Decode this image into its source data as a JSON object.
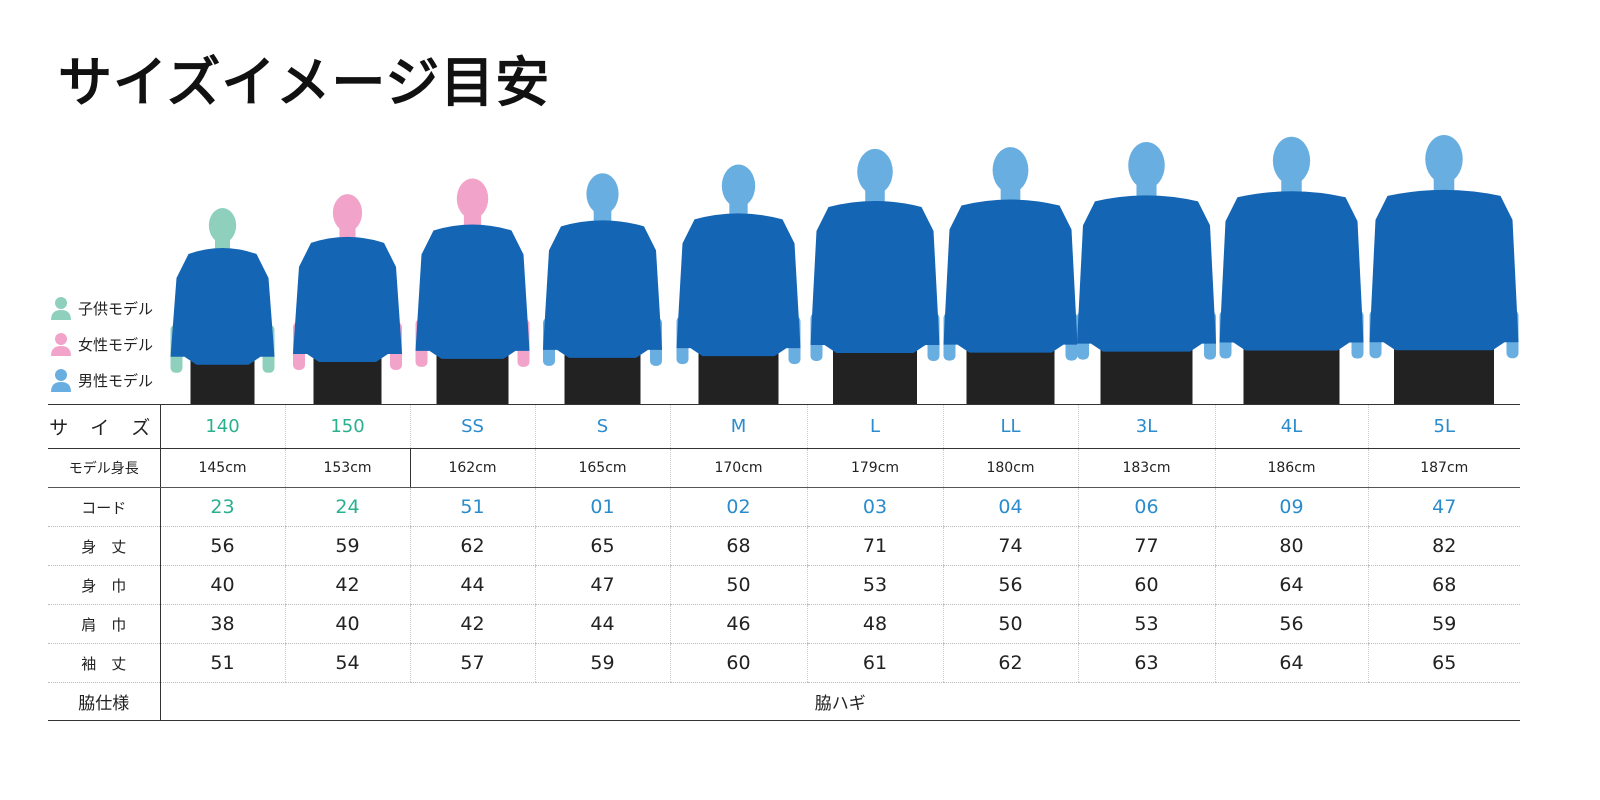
{
  "title": "サイズイメージ目安",
  "colors": {
    "child": "#8fd0bd",
    "female": "#f2a3c9",
    "male": "#69aee0",
    "shirt": "#1565b5",
    "shorts": "#222222",
    "child_text": "#2bb08f",
    "adult_text": "#2a8ccc"
  },
  "legend": [
    {
      "label": "子供モデル",
      "type": "child",
      "icon": "person-icon"
    },
    {
      "label": "女性モデル",
      "type": "female",
      "icon": "person-icon"
    },
    {
      "label": "男性モデル",
      "type": "male",
      "icon": "person-icon"
    }
  ],
  "table": {
    "row_labels": {
      "size": "サ イ ズ",
      "height": "モデル身長",
      "code": "コード",
      "length": "身　丈",
      "width": "身　巾",
      "shoulder": "肩　巾",
      "sleeve": "袖　丈",
      "side": "脇仕様"
    },
    "columns": [
      {
        "size": "140",
        "height": "145cm",
        "height_cm": 145,
        "model": "child",
        "code": "23",
        "length": "56",
        "width": "40",
        "shoulder": "38",
        "sleeve": "51"
      },
      {
        "size": "150",
        "height": "153cm",
        "height_cm": 153,
        "model": "female",
        "code": "24",
        "length": "59",
        "width": "42",
        "shoulder": "40",
        "sleeve": "54"
      },
      {
        "size": "SS",
        "height": "162cm",
        "height_cm": 162,
        "model": "female",
        "code": "51",
        "length": "62",
        "width": "44",
        "shoulder": "42",
        "sleeve": "57"
      },
      {
        "size": "S",
        "height": "165cm",
        "height_cm": 165,
        "model": "male",
        "code": "01",
        "length": "65",
        "width": "47",
        "shoulder": "44",
        "sleeve": "59"
      },
      {
        "size": "M",
        "height": "170cm",
        "height_cm": 170,
        "model": "male",
        "code": "02",
        "length": "68",
        "width": "50",
        "shoulder": "46",
        "sleeve": "60"
      },
      {
        "size": "L",
        "height": "179cm",
        "height_cm": 179,
        "model": "male",
        "code": "03",
        "length": "71",
        "width": "53",
        "shoulder": "48",
        "sleeve": "61"
      },
      {
        "size": "LL",
        "height": "180cm",
        "height_cm": 180,
        "model": "male",
        "code": "04",
        "length": "74",
        "width": "56",
        "shoulder": "50",
        "sleeve": "62"
      },
      {
        "size": "3L",
        "height": "183cm",
        "height_cm": 183,
        "model": "male",
        "code": "06",
        "length": "77",
        "width": "60",
        "shoulder": "53",
        "sleeve": "63"
      },
      {
        "size": "4L",
        "height": "186cm",
        "height_cm": 186,
        "model": "male",
        "code": "09",
        "length": "80",
        "width": "64",
        "shoulder": "56",
        "sleeve": "64"
      },
      {
        "size": "5L",
        "height": "187cm",
        "height_cm": 187,
        "model": "male",
        "code": "47",
        "length": "82",
        "width": "68",
        "shoulder": "59",
        "sleeve": "65"
      }
    ],
    "side_spec": "脇ハギ"
  }
}
